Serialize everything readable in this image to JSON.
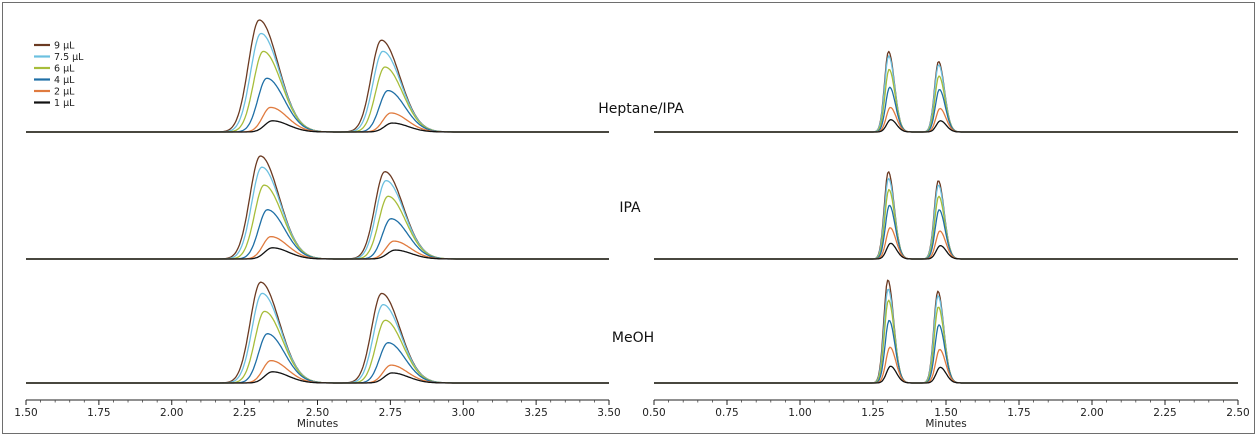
{
  "chart_data": {
    "type": "line",
    "legend": {
      "placement": "top-left",
      "entries": [
        {
          "label": "9 µL",
          "color": "#6b3a22"
        },
        {
          "label": "7.5 µL",
          "color": "#6cc0e0"
        },
        {
          "label": "6 µL",
          "color": "#a7bd3a"
        },
        {
          "label": "4 µL",
          "color": "#1f6fa6"
        },
        {
          "label": "2 µL",
          "color": "#e07b3f"
        },
        {
          "label": "1 µL",
          "color": "#111111"
        }
      ]
    },
    "series_order": [
      "9 µL",
      "7.5 µL",
      "6 µL",
      "4 µL",
      "2 µL",
      "1 µL"
    ],
    "panels": [
      {
        "id": "left",
        "xlabel": "Minutes",
        "xlim": [
          1.5,
          3.5
        ],
        "xticks": [
          "1.50",
          "1.75",
          "2.00",
          "2.25",
          "2.50",
          "2.75",
          "3.00",
          "3.25",
          "3.50"
        ],
        "rows": [
          {
            "label": "",
            "peaks": [
              {
                "rt": 2.3,
                "heights": [
                  1.0,
                  0.88,
                  0.72,
                  0.48,
                  0.22,
                  0.1
                ]
              },
              {
                "rt": 2.71,
                "heights": [
                  0.82,
                  0.72,
                  0.58,
                  0.37,
                  0.17,
                  0.08
                ]
              }
            ]
          },
          {
            "label": "",
            "peaks": [
              {
                "rt": 2.3,
                "heights": [
                  0.92,
                  0.82,
                  0.66,
                  0.44,
                  0.2,
                  0.1
                ]
              },
              {
                "rt": 2.72,
                "heights": [
                  0.78,
                  0.7,
                  0.56,
                  0.36,
                  0.16,
                  0.08
                ]
              }
            ]
          },
          {
            "label": "",
            "peaks": [
              {
                "rt": 2.3,
                "heights": [
                  0.9,
                  0.8,
                  0.64,
                  0.44,
                  0.2,
                  0.1
                ]
              },
              {
                "rt": 2.71,
                "heights": [
                  0.8,
                  0.7,
                  0.56,
                  0.36,
                  0.16,
                  0.09
                ]
              }
            ]
          }
        ]
      },
      {
        "id": "right",
        "xlabel": "Minutes",
        "xlim": [
          0.5,
          2.5
        ],
        "xticks": [
          "0.50",
          "0.75",
          "1.00",
          "1.25",
          "1.50",
          "1.75",
          "2.00",
          "2.25",
          "2.50"
        ],
        "rows": [
          {
            "label": "Heptane/IPA",
            "peaks": [
              {
                "rt": 1.3,
                "heights": [
                  0.72,
                  0.68,
                  0.56,
                  0.4,
                  0.22,
                  0.11
                ]
              },
              {
                "rt": 1.47,
                "heights": [
                  0.63,
                  0.6,
                  0.5,
                  0.38,
                  0.21,
                  0.1
                ]
              }
            ]
          },
          {
            "label": "IPA",
            "peaks": [
              {
                "rt": 1.3,
                "heights": [
                  0.78,
                  0.72,
                  0.62,
                  0.48,
                  0.28,
                  0.14
                ]
              },
              {
                "rt": 1.47,
                "heights": [
                  0.7,
                  0.66,
                  0.56,
                  0.44,
                  0.25,
                  0.12
                ]
              }
            ]
          },
          {
            "label": "MeOH",
            "peaks": [
              {
                "rt": 1.3,
                "heights": [
                  0.92,
                  0.84,
                  0.74,
                  0.56,
                  0.32,
                  0.15
                ]
              },
              {
                "rt": 1.47,
                "heights": [
                  0.82,
                  0.78,
                  0.68,
                  0.52,
                  0.3,
                  0.14
                ]
              }
            ]
          }
        ]
      }
    ],
    "row_labels": [
      "Heptane/IPA",
      "IPA",
      "MeOH"
    ]
  }
}
